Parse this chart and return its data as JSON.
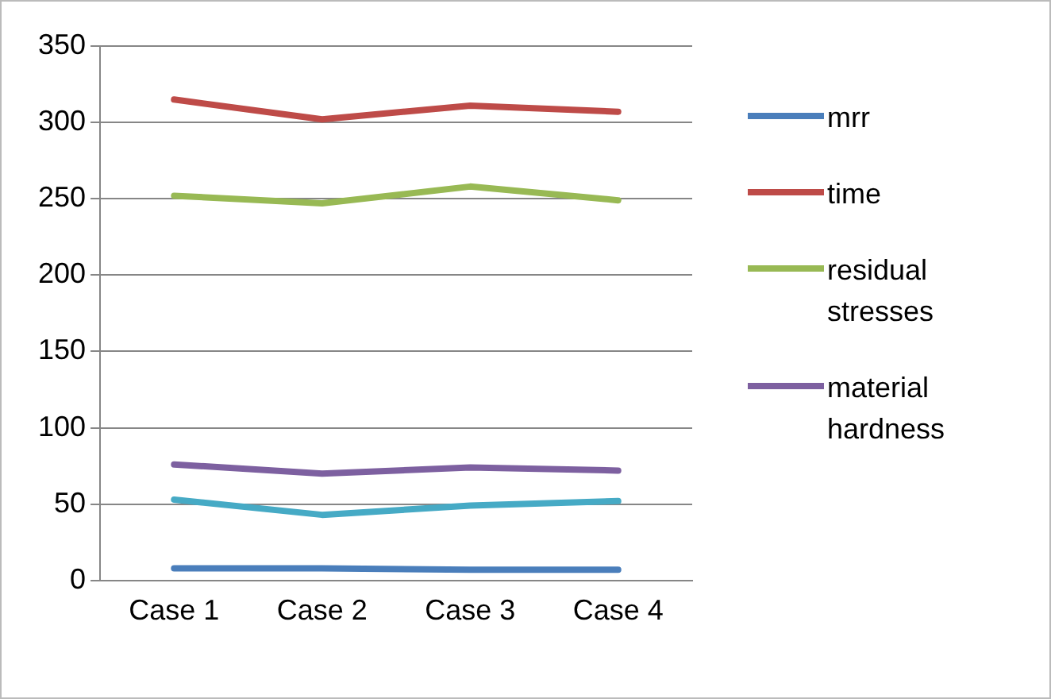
{
  "chart_data": {
    "type": "line",
    "categories": [
      "Case 1",
      "Case 2",
      "Case 3",
      "Case 4"
    ],
    "series": [
      {
        "name": "mrr",
        "color": "#4a7ebb",
        "values": [
          8,
          8,
          7,
          7
        ]
      },
      {
        "name": "time",
        "color": "#be4b48",
        "values": [
          315,
          302,
          311,
          307
        ]
      },
      {
        "name": "residual stresses",
        "color": "#98b954",
        "values": [
          252,
          247,
          258,
          249
        ]
      },
      {
        "name": "material hardness",
        "color": "#7d60a0",
        "values": [
          76,
          70,
          74,
          72
        ]
      },
      {
        "color": "#46aac5",
        "values": [
          53,
          43,
          49,
          52
        ]
      }
    ],
    "ylim": [
      0,
      350
    ],
    "yticks": [
      0,
      50,
      100,
      150,
      200,
      250,
      300,
      350
    ],
    "grid": "y",
    "legend": "right",
    "marker": "none",
    "line_style": "solid"
  }
}
